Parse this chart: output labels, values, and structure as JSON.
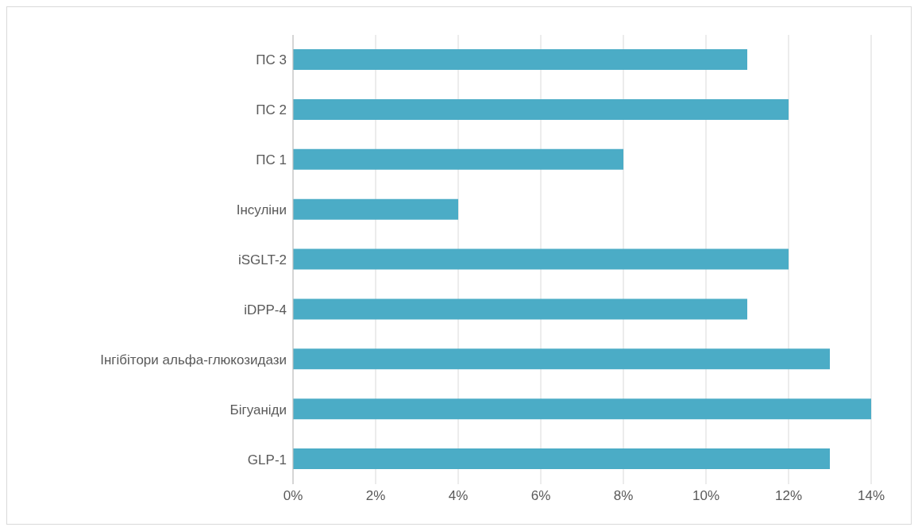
{
  "chart_data": {
    "type": "bar",
    "orientation": "horizontal",
    "categories": [
      "ПС 3",
      "ПС 2",
      "ПС 1",
      "Інсуліни",
      "iSGLT-2",
      "iDPP-4",
      "Інгібітори альфа-глюкозидази",
      "Бігуаніди",
      "GLP-1"
    ],
    "values": [
      11,
      12,
      8,
      4,
      12,
      11,
      13,
      14,
      13
    ],
    "color": "#4bacc6",
    "xlim": [
      0,
      14
    ],
    "xticks": [
      {
        "value": 0,
        "label": "0%"
      },
      {
        "value": 2,
        "label": "2%"
      },
      {
        "value": 4,
        "label": "4%"
      },
      {
        "value": 6,
        "label": "6%"
      },
      {
        "value": 8,
        "label": "8%"
      },
      {
        "value": 10,
        "label": "10%"
      },
      {
        "value": 12,
        "label": "12%"
      },
      {
        "value": 14,
        "label": "14%"
      }
    ],
    "grid": "x"
  }
}
